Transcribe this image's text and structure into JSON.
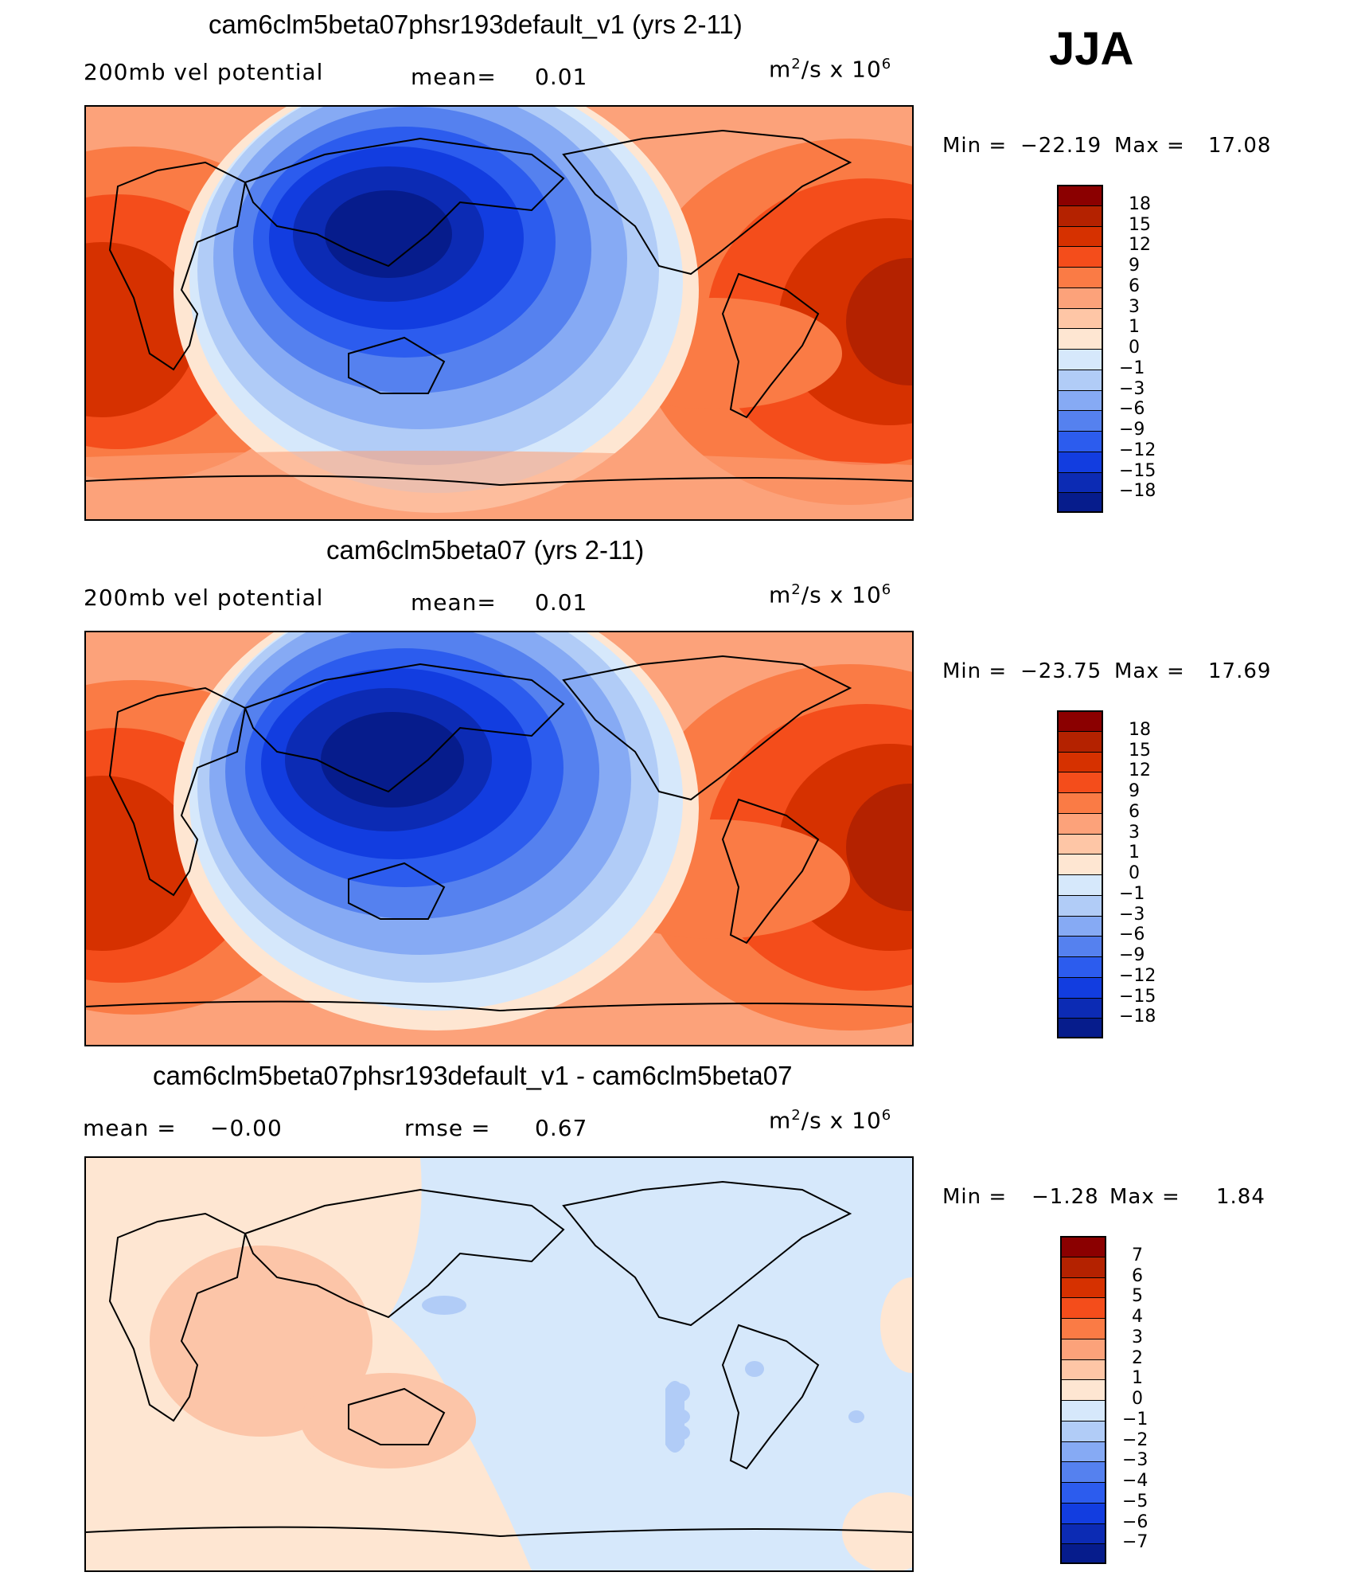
{
  "season": "JJA",
  "chart_data": [
    {
      "type": "heatmap",
      "title": "cam6clm5beta07phsr193default_v1 (yrs 2-11)",
      "variable": "200mb vel potential",
      "mean_label": "mean=",
      "mean_value": "0.01",
      "units": "m²/s x 10⁶",
      "min_label": "Min =",
      "min_value": "−22.19",
      "max_label": "Max =",
      "max_value": "17.08",
      "levels": [
        "18",
        "15",
        "12",
        "9",
        "6",
        "3",
        "1",
        "0",
        "−1",
        "−3",
        "−6",
        "−9",
        "−12",
        "−15",
        "−18"
      ],
      "colors": [
        "#8b0000",
        "#b42200",
        "#d63100",
        "#f44d1b",
        "#fa7b45",
        "#fca27a",
        "#fec6a6",
        "#fee6d2",
        "#d6e8fb",
        "#b1ccf7",
        "#86aaf4",
        "#5581ef",
        "#2c5cee",
        "#123de0",
        "#0c2bb4",
        "#061c8c"
      ]
    },
    {
      "type": "heatmap",
      "title": "cam6clm5beta07 (yrs 2-11)",
      "variable": "200mb vel potential",
      "mean_label": "mean=",
      "mean_value": "0.01",
      "units": "m²/s x 10⁶",
      "min_label": "Min =",
      "min_value": "−23.75",
      "max_label": "Max =",
      "max_value": "17.69",
      "levels": [
        "18",
        "15",
        "12",
        "9",
        "6",
        "3",
        "1",
        "0",
        "−1",
        "−3",
        "−6",
        "−9",
        "−12",
        "−15",
        "−18"
      ],
      "colors": [
        "#8b0000",
        "#b42200",
        "#d63100",
        "#f44d1b",
        "#fa7b45",
        "#fca27a",
        "#fec6a6",
        "#fee6d2",
        "#d6e8fb",
        "#b1ccf7",
        "#86aaf4",
        "#5581ef",
        "#2c5cee",
        "#123de0",
        "#0c2bb4",
        "#061c8c"
      ]
    },
    {
      "type": "heatmap",
      "title": "cam6clm5beta07phsr193default_v1 - cam6clm5beta07",
      "mean_label": "mean =",
      "mean_value": "−0.00",
      "rmse_label": "rmse =",
      "rmse_value": "0.67",
      "units": "m²/s x 10⁶",
      "min_label": "Min =",
      "min_value": "−1.28",
      "max_label": "Max =",
      "max_value": "1.84",
      "levels": [
        "7",
        "6",
        "5",
        "4",
        "3",
        "2",
        "1",
        "0",
        "−1",
        "−2",
        "−3",
        "−4",
        "−5",
        "−6",
        "−7"
      ],
      "colors": [
        "#8b0000",
        "#b42200",
        "#d63100",
        "#f44d1b",
        "#fa7b45",
        "#fca27a",
        "#fec6a6",
        "#fee6d2",
        "#d6e8fb",
        "#b1ccf7",
        "#86aaf4",
        "#5581ef",
        "#2c5cee",
        "#123de0",
        "#0c2bb4",
        "#061c8c"
      ]
    }
  ]
}
